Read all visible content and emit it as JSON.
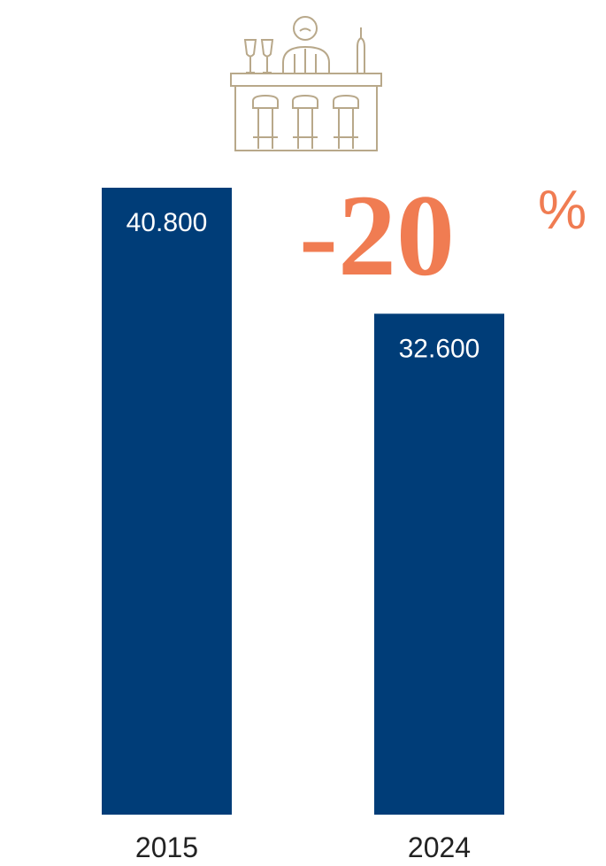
{
  "chart_data": {
    "type": "bar",
    "categories": [
      "2015",
      "2024"
    ],
    "values": [
      40800,
      32600
    ],
    "value_labels": [
      "40.800",
      "32.600"
    ],
    "color": "#003d78",
    "annotation": {
      "number": "-20",
      "unit": "%",
      "color": "#f07c52"
    }
  }
}
